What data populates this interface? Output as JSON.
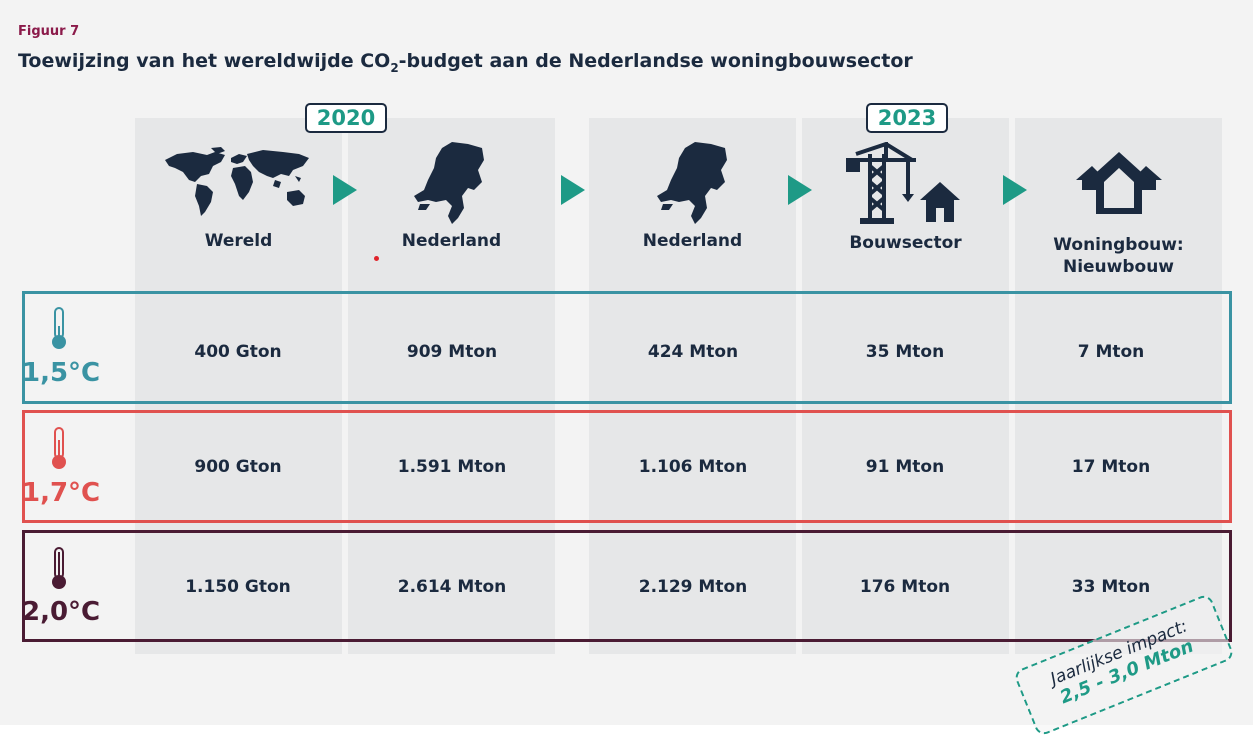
{
  "figure_label": "Figuur 7",
  "title_before": "Toewijzing van het wereldwijde CO",
  "title_sub": "2",
  "title_after": "-budget aan de Nederlandse woningbouwsector",
  "years": {
    "first": "2020",
    "second": "2023"
  },
  "columns": [
    {
      "label": "Wereld",
      "icon": "world-map-icon"
    },
    {
      "label": "Nederland",
      "icon": "netherlands-map-icon"
    },
    {
      "label": "Nederland",
      "icon": "netherlands-map-icon"
    },
    {
      "label": "Bouwsector",
      "icon": "crane-house-icon"
    },
    {
      "label_line1": "Woningbouw:",
      "label_line2": "Nieuwbouw",
      "icon": "houses-icon"
    }
  ],
  "scenarios": [
    {
      "temp": "1,5°C",
      "color": "#3a93a3",
      "values": [
        "400 Gton",
        "909 Mton",
        "424 Mton",
        "35 Mton",
        "7 Mton"
      ]
    },
    {
      "temp": "1,7°C",
      "color": "#e0514f",
      "values": [
        "900 Gton",
        "1.591 Mton",
        "1.106 Mton",
        "91 Mton",
        "17 Mton"
      ]
    },
    {
      "temp": "2,0°C",
      "color": "#4a1b33",
      "values": [
        "1.150 Gton",
        "2.614 Mton",
        "2.129 Mton",
        "176 Mton",
        "33 Mton"
      ]
    }
  ],
  "stamp": {
    "line1": "Jaarlijkse impact:",
    "line2": "2,5 - 3,0 Mton"
  },
  "colors": {
    "accent": "#1e9a86",
    "navy": "#1b2a3f",
    "figure_label": "#8b1a4a"
  }
}
